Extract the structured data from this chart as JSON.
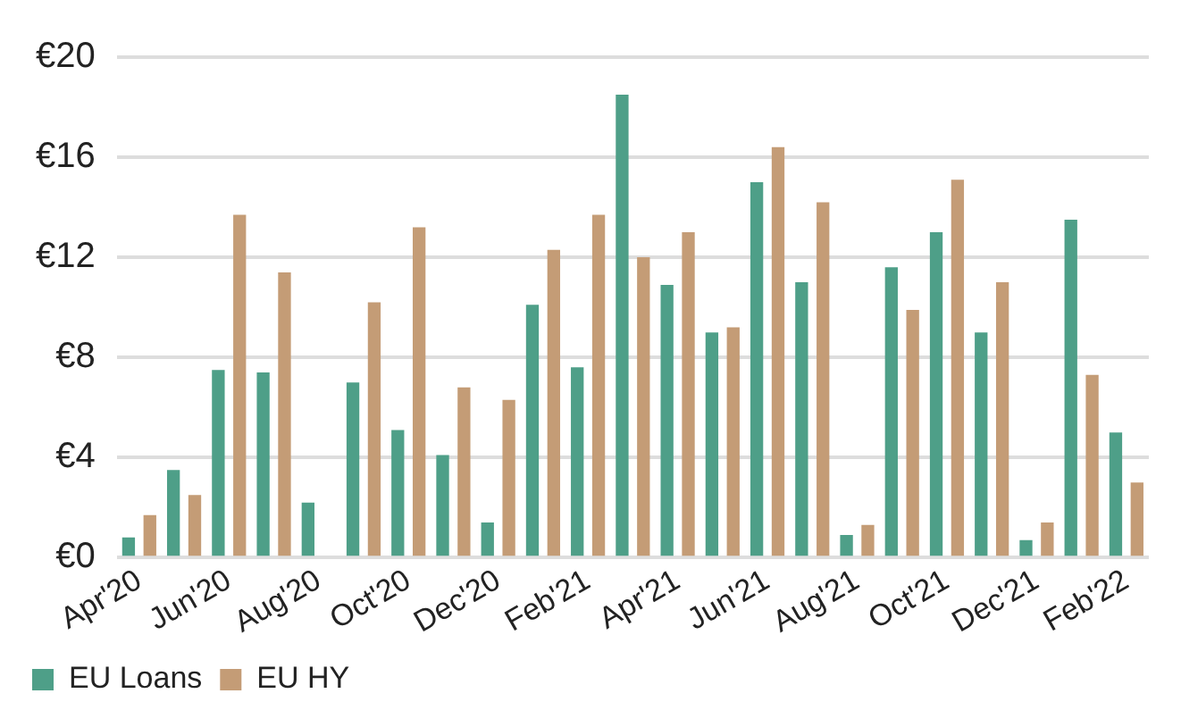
{
  "chart_data": {
    "type": "bar",
    "categories": [
      "Apr'20",
      null,
      "Jun'20",
      null,
      "Aug'20",
      null,
      "Oct'20",
      null,
      "Dec'20",
      null,
      "Feb'21",
      null,
      "Apr'21",
      null,
      "Jun'21",
      null,
      "Aug'21",
      null,
      "Oct'21",
      null,
      "Dec'21",
      null,
      "Feb'22"
    ],
    "series": [
      {
        "name": "EU Loans",
        "color": "#4e9f88",
        "values": [
          0.8,
          3.5,
          7.5,
          7.4,
          2.2,
          7.0,
          5.1,
          4.1,
          1.4,
          10.1,
          7.6,
          18.5,
          10.9,
          9.0,
          15.0,
          11.0,
          0.9,
          11.6,
          13.0,
          9.0,
          0.7,
          13.5,
          5.0
        ]
      },
      {
        "name": "EU HY",
        "color": "#c49c76",
        "values": [
          1.7,
          2.5,
          13.7,
          11.4,
          null,
          10.2,
          13.2,
          6.8,
          6.3,
          12.3,
          13.7,
          12.0,
          13.0,
          9.2,
          16.4,
          14.2,
          1.3,
          9.9,
          15.1,
          11.0,
          1.4,
          7.3,
          3.0
        ]
      }
    ],
    "ylim": [
      0,
      20
    ],
    "yticks": [
      {
        "value": 0,
        "label": "€0"
      },
      {
        "value": 4,
        "label": "€4"
      },
      {
        "value": 8,
        "label": "€8"
      },
      {
        "value": 12,
        "label": "€12"
      },
      {
        "value": 16,
        "label": "€16"
      },
      {
        "value": 20,
        "label": "€20"
      }
    ],
    "grid": "y",
    "legend": "bottom left"
  }
}
